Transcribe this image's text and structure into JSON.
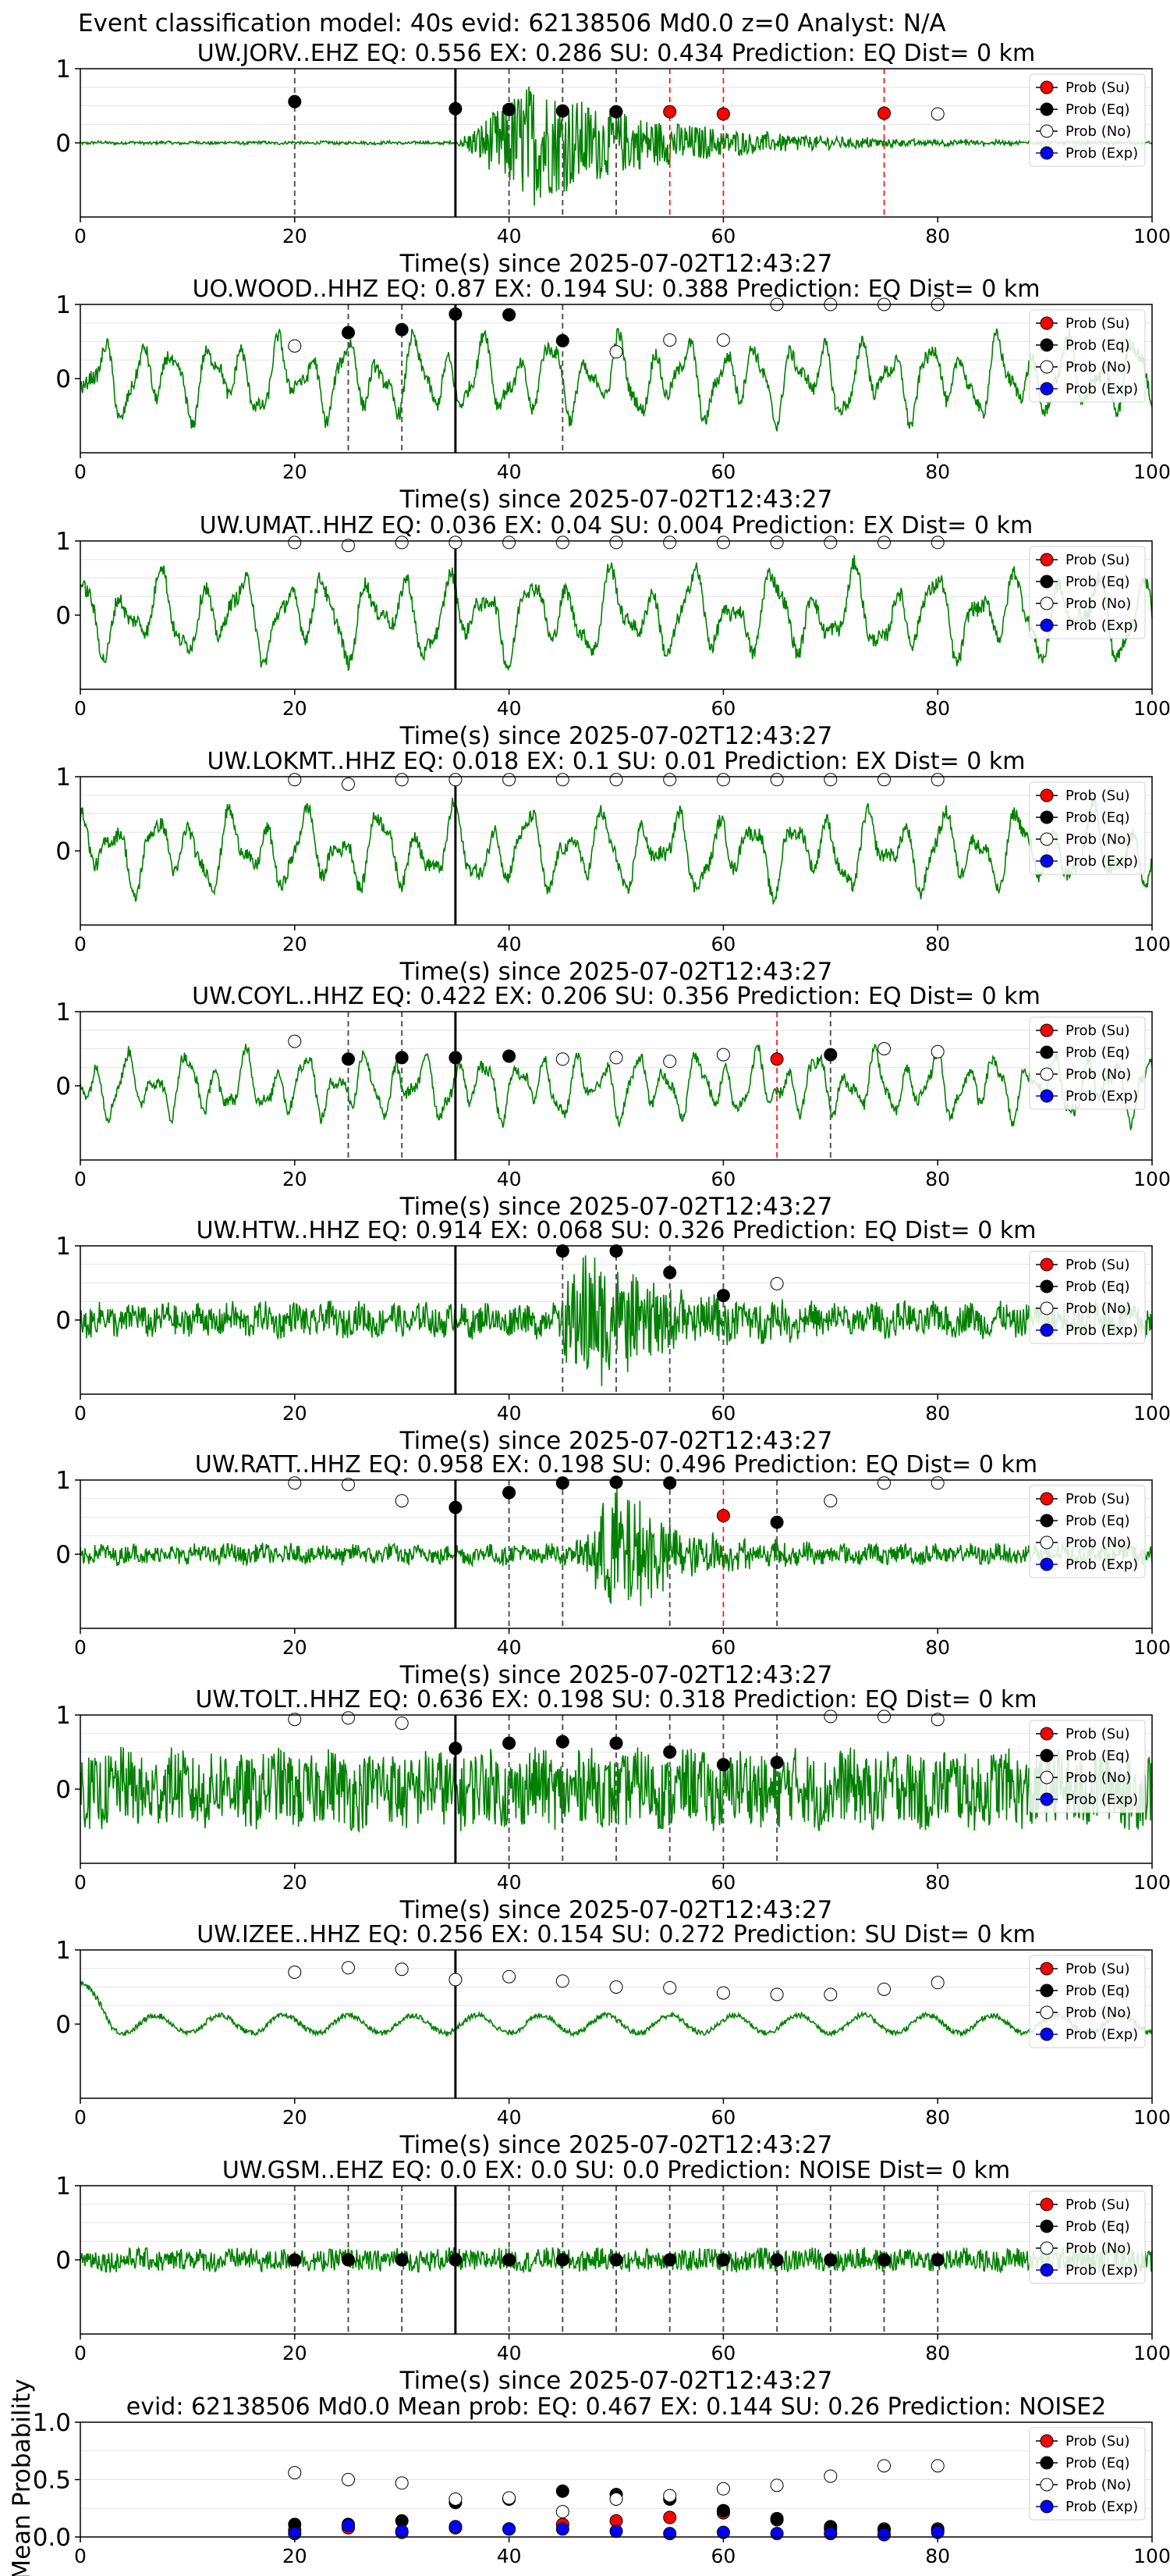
{
  "figure": {
    "suptitle": "Event classification model: 40s evid: 62138506 Md0.0 z=0 Analyst: N/A",
    "xlabel": "Time(s) since 2025-07-02T12:43:27",
    "legend": [
      "Prob (Su)",
      "Prob (Eq)",
      "Prob (No)",
      "Prob (Exp)"
    ],
    "colors": {
      "Su": "#ff0000",
      "Eq": "#000000",
      "No": "#ffffff",
      "Exp": "#0000ff",
      "waveform": "#008000",
      "eq_line": "#555555",
      "su_line": "#ff0000"
    }
  },
  "chart_data": [
    {
      "type": "line",
      "title": "UW.JORV..EHZ   EQ: 0.556  EX: 0.286  SU: 0.434   Prediction: EQ    Dist= 0 km",
      "xlim": [
        0,
        100
      ],
      "ylim": [
        -1,
        1
      ],
      "yticks": [
        "1",
        "0"
      ],
      "xticks": [
        "0",
        "20",
        "40",
        "60",
        "80",
        "100"
      ],
      "pick_time": 35,
      "waveform": {
        "style": "burst",
        "amplitude": 0.02,
        "burst_start": 35,
        "burst_peak": 42,
        "burst_amp": 0.85,
        "decay": 12
      },
      "eq_lines": [
        20,
        40,
        45,
        50
      ],
      "su_lines": [
        55,
        60,
        75
      ],
      "points": [
        {
          "x": 20,
          "y": 0.556,
          "c": "Eq"
        },
        {
          "x": 35,
          "y": 0.46,
          "c": "Eq"
        },
        {
          "x": 40,
          "y": 0.45,
          "c": "Eq"
        },
        {
          "x": 45,
          "y": 0.43,
          "c": "Eq"
        },
        {
          "x": 50,
          "y": 0.42,
          "c": "Eq"
        },
        {
          "x": 55,
          "y": 0.42,
          "c": "Su"
        },
        {
          "x": 60,
          "y": 0.39,
          "c": "Su"
        },
        {
          "x": 75,
          "y": 0.4,
          "c": "Su"
        },
        {
          "x": 80,
          "y": 0.39,
          "c": "No"
        }
      ]
    },
    {
      "type": "line",
      "title": "UO.WOOD..HHZ   EQ: 0.87  EX: 0.194  SU: 0.388   Prediction: EQ    Dist= 0 km",
      "xlim": [
        0,
        100
      ],
      "ylim": [
        -1,
        1
      ],
      "yticks": [
        "1",
        "0"
      ],
      "xticks": [
        "0",
        "20",
        "40",
        "60",
        "80",
        "100"
      ],
      "pick_time": 35,
      "waveform": {
        "style": "oscillating",
        "amplitude": 0.55,
        "period": 3.2
      },
      "eq_lines": [
        25,
        30,
        35,
        45
      ],
      "su_lines": [],
      "points": [
        {
          "x": 20,
          "y": 0.44,
          "c": "No"
        },
        {
          "x": 25,
          "y": 0.62,
          "c": "Eq"
        },
        {
          "x": 30,
          "y": 0.66,
          "c": "Eq"
        },
        {
          "x": 35,
          "y": 0.87,
          "c": "Eq"
        },
        {
          "x": 40,
          "y": 0.86,
          "c": "Eq"
        },
        {
          "x": 45,
          "y": 0.51,
          "c": "Eq"
        },
        {
          "x": 50,
          "y": 0.36,
          "c": "No"
        },
        {
          "x": 55,
          "y": 0.52,
          "c": "No"
        },
        {
          "x": 60,
          "y": 0.52,
          "c": "No"
        },
        {
          "x": 65,
          "y": 1.0,
          "c": "No"
        },
        {
          "x": 70,
          "y": 1.0,
          "c": "No"
        },
        {
          "x": 75,
          "y": 1.0,
          "c": "No"
        },
        {
          "x": 80,
          "y": 1.0,
          "c": "No"
        }
      ]
    },
    {
      "type": "line",
      "title": "UW.UMAT..HHZ   EQ: 0.036  EX: 0.04  SU: 0.004   Prediction: EX    Dist= 0 km",
      "xlim": [
        0,
        100
      ],
      "ylim": [
        -1,
        1
      ],
      "yticks": [
        "1",
        "0"
      ],
      "xticks": [
        "0",
        "20",
        "40",
        "60",
        "80",
        "100"
      ],
      "pick_time": 35,
      "waveform": {
        "style": "oscillating",
        "amplitude": 0.6,
        "period": 3.8
      },
      "eq_lines": [],
      "su_lines": [],
      "points": [
        {
          "x": 20,
          "y": 0.98,
          "c": "No"
        },
        {
          "x": 25,
          "y": 0.94,
          "c": "No"
        },
        {
          "x": 30,
          "y": 0.98,
          "c": "No"
        },
        {
          "x": 35,
          "y": 0.98,
          "c": "No"
        },
        {
          "x": 40,
          "y": 0.98,
          "c": "No"
        },
        {
          "x": 45,
          "y": 0.98,
          "c": "No"
        },
        {
          "x": 50,
          "y": 0.98,
          "c": "No"
        },
        {
          "x": 55,
          "y": 0.98,
          "c": "No"
        },
        {
          "x": 60,
          "y": 0.98,
          "c": "No"
        },
        {
          "x": 65,
          "y": 0.98,
          "c": "No"
        },
        {
          "x": 70,
          "y": 0.98,
          "c": "No"
        },
        {
          "x": 75,
          "y": 0.98,
          "c": "No"
        },
        {
          "x": 80,
          "y": 0.98,
          "c": "No"
        }
      ]
    },
    {
      "type": "line",
      "title": "UW.LOKMT..HHZ   EQ: 0.018  EX: 0.1  SU: 0.01   Prediction: EX    Dist= 0 km",
      "xlim": [
        0,
        100
      ],
      "ylim": [
        -1,
        1
      ],
      "yticks": [
        "1",
        "0"
      ],
      "xticks": [
        "0",
        "20",
        "40",
        "60",
        "80",
        "100"
      ],
      "pick_time": 35,
      "waveform": {
        "style": "oscillating",
        "amplitude": 0.55,
        "period": 3.5
      },
      "eq_lines": [],
      "su_lines": [],
      "points": [
        {
          "x": 20,
          "y": 0.96,
          "c": "No"
        },
        {
          "x": 25,
          "y": 0.9,
          "c": "No"
        },
        {
          "x": 30,
          "y": 0.96,
          "c": "No"
        },
        {
          "x": 35,
          "y": 0.96,
          "c": "No"
        },
        {
          "x": 40,
          "y": 0.96,
          "c": "No"
        },
        {
          "x": 45,
          "y": 0.96,
          "c": "No"
        },
        {
          "x": 50,
          "y": 0.96,
          "c": "No"
        },
        {
          "x": 55,
          "y": 0.96,
          "c": "No"
        },
        {
          "x": 60,
          "y": 0.96,
          "c": "No"
        },
        {
          "x": 65,
          "y": 0.96,
          "c": "No"
        },
        {
          "x": 70,
          "y": 0.96,
          "c": "No"
        },
        {
          "x": 75,
          "y": 0.96,
          "c": "No"
        },
        {
          "x": 80,
          "y": 0.96,
          "c": "No"
        }
      ]
    },
    {
      "type": "line",
      "title": "UW.COYL..HHZ   EQ: 0.422  EX: 0.206  SU: 0.356   Prediction: EQ    Dist= 0 km",
      "xlim": [
        0,
        100
      ],
      "ylim": [
        -1,
        1
      ],
      "yticks": [
        "1",
        "0"
      ],
      "xticks": [
        "0",
        "20",
        "40",
        "60",
        "80",
        "100"
      ],
      "pick_time": 35,
      "waveform": {
        "style": "oscillating",
        "amplitude": 0.45,
        "period": 2.8
      },
      "eq_lines": [
        25,
        30,
        70
      ],
      "su_lines": [
        65
      ],
      "points": [
        {
          "x": 20,
          "y": 0.6,
          "c": "No"
        },
        {
          "x": 25,
          "y": 0.36,
          "c": "Eq"
        },
        {
          "x": 30,
          "y": 0.38,
          "c": "Eq"
        },
        {
          "x": 35,
          "y": 0.38,
          "c": "Eq"
        },
        {
          "x": 40,
          "y": 0.4,
          "c": "Eq"
        },
        {
          "x": 45,
          "y": 0.36,
          "c": "No"
        },
        {
          "x": 50,
          "y": 0.38,
          "c": "No"
        },
        {
          "x": 55,
          "y": 0.33,
          "c": "No"
        },
        {
          "x": 60,
          "y": 0.42,
          "c": "No"
        },
        {
          "x": 65,
          "y": 0.36,
          "c": "Su"
        },
        {
          "x": 70,
          "y": 0.42,
          "c": "Eq"
        },
        {
          "x": 75,
          "y": 0.5,
          "c": "No"
        },
        {
          "x": 80,
          "y": 0.46,
          "c": "No"
        }
      ]
    },
    {
      "type": "line",
      "title": "UW.HTW..HHZ   EQ: 0.914  EX: 0.068  SU: 0.326   Prediction: EQ    Dist= 0 km",
      "xlim": [
        0,
        100
      ],
      "ylim": [
        -1,
        1
      ],
      "yticks": [
        "1",
        "0"
      ],
      "xticks": [
        "0",
        "20",
        "40",
        "60",
        "80",
        "100"
      ],
      "pick_time": 35,
      "waveform": {
        "style": "burst",
        "amplitude": 0.2,
        "burst_start": 44,
        "burst_peak": 47,
        "burst_amp": 0.9,
        "decay": 8
      },
      "eq_lines": [
        45,
        50,
        55,
        60
      ],
      "su_lines": [],
      "points": [
        {
          "x": 45,
          "y": 0.93,
          "c": "Eq"
        },
        {
          "x": 50,
          "y": 0.93,
          "c": "Eq"
        },
        {
          "x": 55,
          "y": 0.64,
          "c": "Eq"
        },
        {
          "x": 60,
          "y": 0.33,
          "c": "Eq"
        },
        {
          "x": 65,
          "y": 0.49,
          "c": "No"
        }
      ]
    },
    {
      "type": "line",
      "title": "UW.RATT..HHZ   EQ: 0.958  EX: 0.198  SU: 0.496   Prediction: EQ    Dist= 0 km",
      "xlim": [
        0,
        100
      ],
      "ylim": [
        -1,
        1
      ],
      "yticks": [
        "1",
        "0"
      ],
      "xticks": [
        "0",
        "20",
        "40",
        "60",
        "80",
        "100"
      ],
      "pick_time": 35,
      "waveform": {
        "style": "burst",
        "amplitude": 0.12,
        "burst_start": 46,
        "burst_peak": 50,
        "burst_amp": 0.95,
        "decay": 6
      },
      "eq_lines": [
        40,
        45,
        55,
        65
      ],
      "su_lines": [
        60
      ],
      "points": [
        {
          "x": 20,
          "y": 0.96,
          "c": "No"
        },
        {
          "x": 25,
          "y": 0.94,
          "c": "No"
        },
        {
          "x": 30,
          "y": 0.72,
          "c": "No"
        },
        {
          "x": 35,
          "y": 0.63,
          "c": "Eq"
        },
        {
          "x": 40,
          "y": 0.83,
          "c": "Eq"
        },
        {
          "x": 45,
          "y": 0.96,
          "c": "Eq"
        },
        {
          "x": 50,
          "y": 0.97,
          "c": "Eq"
        },
        {
          "x": 55,
          "y": 0.96,
          "c": "Eq"
        },
        {
          "x": 60,
          "y": 0.52,
          "c": "Su"
        },
        {
          "x": 65,
          "y": 0.43,
          "c": "Eq"
        },
        {
          "x": 70,
          "y": 0.72,
          "c": "No"
        },
        {
          "x": 75,
          "y": 0.96,
          "c": "No"
        },
        {
          "x": 80,
          "y": 0.96,
          "c": "No"
        }
      ]
    },
    {
      "type": "line",
      "title": "UW.TOLT..HHZ   EQ: 0.636  EX: 0.198  SU: 0.318   Prediction: EQ    Dist= 0 km",
      "xlim": [
        0,
        100
      ],
      "ylim": [
        -1,
        1
      ],
      "yticks": [
        "1",
        "0"
      ],
      "xticks": [
        "0",
        "20",
        "40",
        "60",
        "80",
        "100"
      ],
      "pick_time": 35,
      "waveform": {
        "style": "noisy",
        "amplitude": 0.5
      },
      "eq_lines": [
        40,
        45,
        50,
        55,
        60,
        65
      ],
      "su_lines": [],
      "points": [
        {
          "x": 20,
          "y": 0.94,
          "c": "No"
        },
        {
          "x": 25,
          "y": 0.96,
          "c": "No"
        },
        {
          "x": 30,
          "y": 0.89,
          "c": "No"
        },
        {
          "x": 35,
          "y": 0.55,
          "c": "Eq"
        },
        {
          "x": 40,
          "y": 0.62,
          "c": "Eq"
        },
        {
          "x": 45,
          "y": 0.64,
          "c": "Eq"
        },
        {
          "x": 50,
          "y": 0.62,
          "c": "Eq"
        },
        {
          "x": 55,
          "y": 0.5,
          "c": "Eq"
        },
        {
          "x": 60,
          "y": 0.33,
          "c": "Eq"
        },
        {
          "x": 65,
          "y": 0.36,
          "c": "Eq"
        },
        {
          "x": 70,
          "y": 0.98,
          "c": "No"
        },
        {
          "x": 75,
          "y": 0.98,
          "c": "No"
        },
        {
          "x": 80,
          "y": 0.94,
          "c": "No"
        }
      ]
    },
    {
      "type": "line",
      "title": "UW.IZEE..HHZ   EQ: 0.256  EX: 0.154  SU: 0.272   Prediction: SU    Dist= 0 km",
      "xlim": [
        0,
        100
      ],
      "ylim": [
        -1,
        1
      ],
      "yticks": [
        "1",
        "0"
      ],
      "xticks": [
        "0",
        "20",
        "40",
        "60",
        "80",
        "100"
      ],
      "pick_time": 35,
      "waveform": {
        "style": "smooth",
        "amplitude": 0.12,
        "period": 6
      },
      "eq_lines": [],
      "su_lines": [],
      "points": [
        {
          "x": 20,
          "y": 0.7,
          "c": "No"
        },
        {
          "x": 25,
          "y": 0.76,
          "c": "No"
        },
        {
          "x": 30,
          "y": 0.74,
          "c": "No"
        },
        {
          "x": 35,
          "y": 0.6,
          "c": "No"
        },
        {
          "x": 40,
          "y": 0.64,
          "c": "No"
        },
        {
          "x": 45,
          "y": 0.58,
          "c": "No"
        },
        {
          "x": 50,
          "y": 0.5,
          "c": "No"
        },
        {
          "x": 55,
          "y": 0.49,
          "c": "No"
        },
        {
          "x": 60,
          "y": 0.42,
          "c": "No"
        },
        {
          "x": 65,
          "y": 0.4,
          "c": "No"
        },
        {
          "x": 70,
          "y": 0.4,
          "c": "No"
        },
        {
          "x": 75,
          "y": 0.47,
          "c": "No"
        },
        {
          "x": 80,
          "y": 0.56,
          "c": "No"
        }
      ]
    },
    {
      "type": "line",
      "title": "UW.GSM..EHZ   EQ: 0.0  EX: 0.0  SU: 0.0   Prediction: NOISE    Dist= 0 km",
      "xlim": [
        0,
        100
      ],
      "ylim": [
        -1,
        1
      ],
      "yticks": [
        "1",
        "0"
      ],
      "xticks": [
        "0",
        "20",
        "40",
        "60",
        "80",
        "100"
      ],
      "pick_time": 35,
      "waveform": {
        "style": "noisy",
        "amplitude": 0.15
      },
      "eq_lines": [
        20,
        25,
        30,
        35,
        40,
        45,
        50,
        55,
        60,
        65,
        70,
        75,
        80
      ],
      "su_lines": [],
      "points": [
        {
          "x": 20,
          "y": 0.0,
          "c": "Eq"
        },
        {
          "x": 25,
          "y": 0.0,
          "c": "Eq"
        },
        {
          "x": 30,
          "y": 0.0,
          "c": "Eq"
        },
        {
          "x": 35,
          "y": 0.0,
          "c": "Eq"
        },
        {
          "x": 40,
          "y": 0.0,
          "c": "Eq"
        },
        {
          "x": 45,
          "y": 0.0,
          "c": "Eq"
        },
        {
          "x": 50,
          "y": 0.0,
          "c": "Eq"
        },
        {
          "x": 55,
          "y": 0.0,
          "c": "Eq"
        },
        {
          "x": 60,
          "y": 0.0,
          "c": "Eq"
        },
        {
          "x": 65,
          "y": 0.0,
          "c": "Eq"
        },
        {
          "x": 70,
          "y": 0.0,
          "c": "Eq"
        },
        {
          "x": 75,
          "y": 0.0,
          "c": "Eq"
        },
        {
          "x": 80,
          "y": 0.0,
          "c": "Eq"
        }
      ]
    },
    {
      "type": "scatter",
      "title": "evid: 62138506  Md0.0   Mean prob:   EQ: 0.467  EX: 0.144  SU: 0.26   Prediction: NOISE2",
      "ylabel": "Mean Probability",
      "xlim": [
        0,
        100
      ],
      "ylim": [
        0,
        1
      ],
      "xticks": [
        "0",
        "20",
        "40",
        "60",
        "80",
        "100"
      ],
      "yticks": [
        "1.0",
        "0.5",
        "0.0"
      ],
      "series": [
        {
          "name": "Prob (Su)",
          "c": "Su",
          "x": [
            20,
            25,
            30,
            35,
            40,
            45,
            50,
            55,
            60,
            65,
            70,
            75,
            80
          ],
          "y": [
            0.06,
            0.08,
            0.04,
            0.08,
            0.07,
            0.11,
            0.14,
            0.17,
            0.21,
            0.15,
            0.07,
            0.07,
            0.07
          ]
        },
        {
          "name": "Prob (Eq)",
          "c": "Eq",
          "x": [
            20,
            25,
            30,
            35,
            40,
            45,
            50,
            55,
            60,
            65,
            70,
            75,
            80
          ],
          "y": [
            0.11,
            0.11,
            0.14,
            0.3,
            0.33,
            0.4,
            0.37,
            0.33,
            0.23,
            0.16,
            0.09,
            0.06,
            0.06
          ]
        },
        {
          "name": "Prob (No)",
          "c": "No",
          "x": [
            20,
            25,
            30,
            35,
            40,
            45,
            50,
            55,
            60,
            65,
            70,
            75,
            80
          ],
          "y": [
            0.56,
            0.5,
            0.47,
            0.33,
            0.34,
            0.22,
            0.33,
            0.36,
            0.42,
            0.45,
            0.53,
            0.62,
            0.62
          ]
        },
        {
          "name": "Prob (Exp)",
          "c": "Exp",
          "x": [
            20,
            25,
            30,
            35,
            40,
            45,
            50,
            55,
            60,
            65,
            70,
            75,
            80
          ],
          "y": [
            0.03,
            0.1,
            0.05,
            0.09,
            0.07,
            0.07,
            0.05,
            0.03,
            0.04,
            0.03,
            0.03,
            0.02,
            0.04
          ]
        }
      ]
    }
  ]
}
